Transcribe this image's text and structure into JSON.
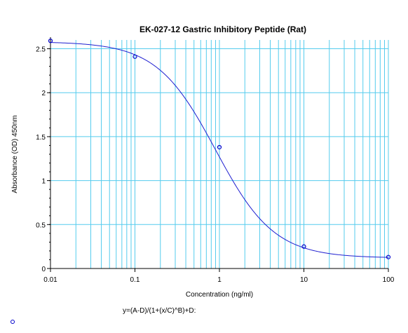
{
  "chart_data": {
    "type": "scatter",
    "title": "EK-027-12 Gastric Inhibitory Peptide (Rat)",
    "xlabel": "Concentration (ng/ml)",
    "ylabel": "Absorbance (OD) 450nm",
    "x_scale": "log",
    "xlim": [
      0.01,
      100
    ],
    "ylim": [
      0,
      2.6
    ],
    "x_ticks": [
      0.01,
      0.1,
      1,
      10,
      100
    ],
    "x_tick_labels": [
      "0.01",
      "0.1",
      "1",
      "10",
      "100"
    ],
    "y_ticks": [
      0,
      0.5,
      1,
      1.5,
      2,
      2.5
    ],
    "y_tick_labels": [
      "0",
      "0.5",
      "1",
      "1.5",
      "2",
      "2.5"
    ],
    "grid": true,
    "series": [
      {
        "points": [
          {
            "x": 0.01,
            "y": 2.59
          },
          {
            "x": 0.1,
            "y": 2.41
          },
          {
            "x": 1,
            "y": 1.38
          },
          {
            "x": 10,
            "y": 0.25
          },
          {
            "x": 100,
            "y": 0.13
          }
        ]
      }
    ],
    "fit": {
      "model": "4PL",
      "A": 2.58,
      "B": 1.25,
      "C": 0.9,
      "D": 0.12,
      "x_range": [
        0.01,
        100
      ]
    },
    "formula": "y=(A-D)/(1+(x/C)^B)+D:",
    "colors": {
      "grid": "#55ccee",
      "fit_line": "#1f1fd0",
      "marker": "#0000cc",
      "axis": "#000000"
    }
  }
}
